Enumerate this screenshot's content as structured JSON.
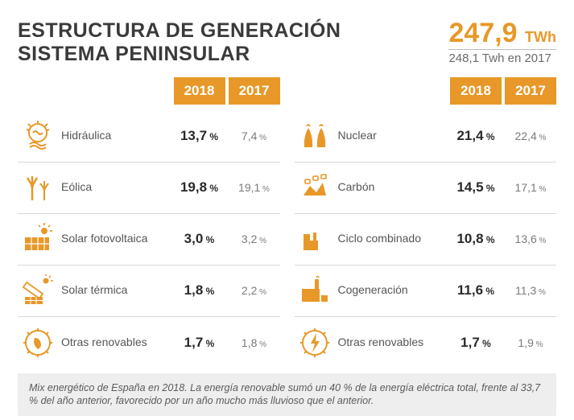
{
  "title_line1": "ESTRUCTURA DE GENERACIÓN",
  "title_line2": "SISTEMA PENINSULAR",
  "total": {
    "value": "247,9",
    "unit": "TWh",
    "sub_value": "248,1",
    "sub_text": "Twh en 2017"
  },
  "years": {
    "a": "2018",
    "b": "2017"
  },
  "colors": {
    "accent": "#e89828",
    "text": "#3a3a3a",
    "muted": "#7a7a7a",
    "border": "#d8d8d8",
    "footnote_bg": "#eeeeee"
  },
  "left": [
    {
      "icon": "hydro",
      "name": "Hidráulica",
      "v2018": "13,7",
      "v2017": "7,4"
    },
    {
      "icon": "wind",
      "name": "Eólica",
      "v2018": "19,8",
      "v2017": "19,1"
    },
    {
      "icon": "solar-pv",
      "name": "Solar fotovoltaica",
      "v2018": "3,0",
      "v2017": "3,2"
    },
    {
      "icon": "solar-thermal",
      "name": "Solar térmica",
      "v2018": "1,8",
      "v2017": "2,2"
    },
    {
      "icon": "leaf",
      "name": "Otras renovables",
      "v2018": "1,7",
      "v2017": "1,8"
    }
  ],
  "right": [
    {
      "icon": "nuclear",
      "name": "Nuclear",
      "v2018": "21,4",
      "v2017": "22,4"
    },
    {
      "icon": "coal",
      "name": "Carbón",
      "v2018": "14,5",
      "v2017": "17,1"
    },
    {
      "icon": "combined",
      "name": "Ciclo combinado",
      "v2018": "10,8",
      "v2017": "13,6"
    },
    {
      "icon": "cogen",
      "name": "Cogeneración",
      "v2018": "11,6",
      "v2017": "11,3"
    },
    {
      "icon": "bolt",
      "name": "Otras renovables",
      "v2018": "1,7",
      "v2017": "1,9"
    }
  ],
  "footnote": "Mix energético de España en 2018. La energía renovable sumó un 40 % de la energía eléctrica total, frente al 33,7 % del año anterior, favorecido por un año mucho más lluvioso que el anterior."
}
